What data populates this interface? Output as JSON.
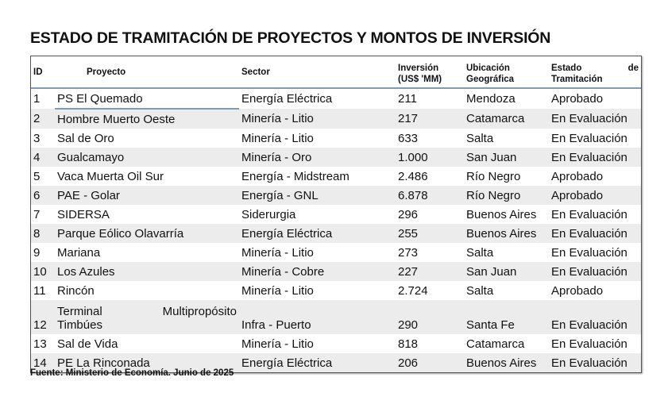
{
  "title": "ESTADO DE TRAMITACIÓN DE PROYECTOS Y MONTOS DE INVERSIÓN",
  "table": {
    "headers": {
      "id": "ID",
      "proyecto": "Proyecto",
      "sector": "Sector",
      "inversion_1": "Inversión",
      "inversion_2": "(US$ 'MM)",
      "ubicacion_1": "Ubicación",
      "ubicacion_2": "Geográfica",
      "estado_1a": "Estado",
      "estado_1b": "de",
      "estado_2": "Tramitación"
    },
    "rows": [
      {
        "id": "1",
        "proyecto": "PS El Quemado",
        "sector": "Energía Eléctrica",
        "inversion": "211",
        "ubicacion": "Mendoza",
        "estado": "Aprobado"
      },
      {
        "id": "2",
        "proyecto": "Hombre Muerto Oeste",
        "sector": "Minería - Litio",
        "inversion": "217",
        "ubicacion": "Catamarca",
        "estado": "En Evaluación"
      },
      {
        "id": "3",
        "proyecto": "Sal de Oro",
        "sector": "Minería - Litio",
        "inversion": "633",
        "ubicacion": "Salta",
        "estado": "En Evaluación"
      },
      {
        "id": "4",
        "proyecto": "Gualcamayo",
        "sector": "Minería - Oro",
        "inversion": "1.000",
        "ubicacion": "San Juan",
        "estado": "En Evaluación"
      },
      {
        "id": "5",
        "proyecto": "Vaca Muerta Oil Sur",
        "sector": "Energía - Midstream",
        "inversion": "2.486",
        "ubicacion": "Río Negro",
        "estado": "Aprobado"
      },
      {
        "id": "6",
        "proyecto": "PAE - Golar",
        "sector": "Energía - GNL",
        "inversion": "6.878",
        "ubicacion": "Río Negro",
        "estado": "Aprobado"
      },
      {
        "id": "7",
        "proyecto": "SIDERSA",
        "sector": "Siderurgia",
        "inversion": "296",
        "ubicacion": "Buenos Aires",
        "estado": "En Evaluación"
      },
      {
        "id": "8",
        "proyecto": "Parque Eólico Olavarría",
        "sector": "Energía Eléctrica",
        "inversion": "255",
        "ubicacion": "Buenos Aires",
        "estado": "En Evaluación"
      },
      {
        "id": "9",
        "proyecto": "Mariana",
        "sector": "Minería - Litio",
        "inversion": "273",
        "ubicacion": "Salta",
        "estado": "En Evaluación"
      },
      {
        "id": "10",
        "proyecto": "Los Azules",
        "sector": "Minería - Cobre",
        "inversion": "227",
        "ubicacion": "San Juan",
        "estado": "En Evaluación"
      },
      {
        "id": "11",
        "proyecto": "Rincón",
        "sector": "Minería - Litio",
        "inversion": "2.724",
        "ubicacion": "Salta",
        "estado": "Aprobado"
      },
      {
        "id": "12",
        "proyecto_1a": "Terminal",
        "proyecto_1b": "Multipropósito",
        "proyecto": "Timbúes",
        "sector": "Infra - Puerto",
        "inversion": "290",
        "ubicacion": "Santa Fe",
        "estado": "En Evaluación"
      },
      {
        "id": "13",
        "proyecto": "Sal de Vida",
        "sector": "Minería - Litio",
        "inversion": "818",
        "ubicacion": "Catamarca",
        "estado": "En Evaluación"
      },
      {
        "id": "14",
        "proyecto": "PE La Rinconada",
        "sector": "Energía Eléctrica",
        "inversion": "206",
        "ubicacion": "Buenos Aires",
        "estado": "En Evaluación"
      }
    ]
  },
  "footer": "Fuente: Ministerio de Economía. Junio de 2025"
}
